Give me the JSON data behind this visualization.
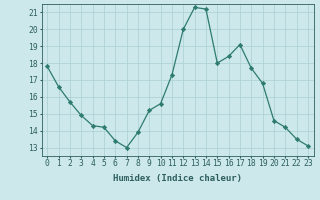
{
  "x": [
    0,
    1,
    2,
    3,
    4,
    5,
    6,
    7,
    8,
    9,
    10,
    11,
    12,
    13,
    14,
    15,
    16,
    17,
    18,
    19,
    20,
    21,
    22,
    23
  ],
  "y": [
    17.8,
    16.6,
    15.7,
    14.9,
    14.3,
    14.2,
    13.4,
    13.0,
    13.9,
    15.2,
    15.6,
    17.3,
    20.0,
    21.3,
    21.2,
    18.0,
    18.4,
    19.1,
    17.7,
    16.8,
    14.6,
    14.2,
    13.5,
    13.1
  ],
  "line_color": "#2e7b6f",
  "marker": "D",
  "marker_size": 2.2,
  "bg_color": "#cce8ea",
  "plot_bg_color": "#cce8ea",
  "grid_color": "#aacfd4",
  "tick_color": "#2e5f5f",
  "xlabel": "Humidex (Indice chaleur)",
  "xlim": [
    -0.5,
    23.5
  ],
  "ylim": [
    12.5,
    21.5
  ],
  "yticks": [
    13,
    14,
    15,
    16,
    17,
    18,
    19,
    20,
    21
  ],
  "xticks": [
    0,
    1,
    2,
    3,
    4,
    5,
    6,
    7,
    8,
    9,
    10,
    11,
    12,
    13,
    14,
    15,
    16,
    17,
    18,
    19,
    20,
    21,
    22,
    23
  ],
  "xlabel_fontsize": 6.5,
  "tick_fontsize": 5.8,
  "linewidth": 0.9
}
